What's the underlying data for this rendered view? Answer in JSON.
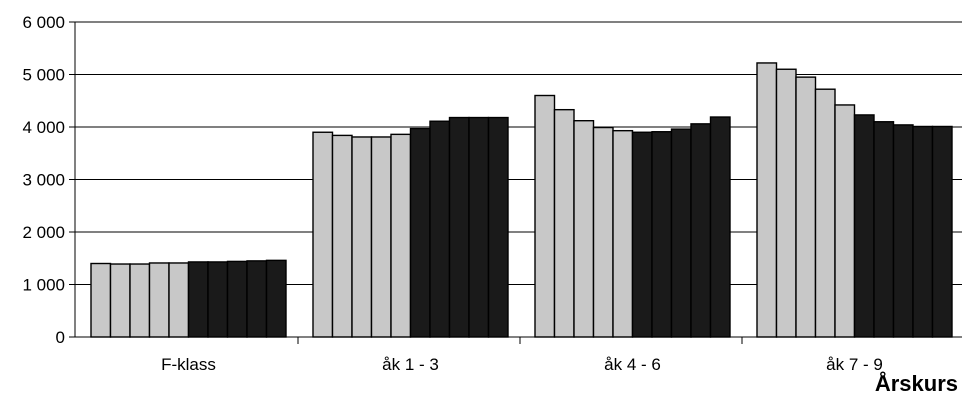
{
  "chart_data": {
    "type": "bar",
    "title": "",
    "xlabel": "Årskurs",
    "ylabel": "",
    "ylim": [
      0,
      6000
    ],
    "yticks": [
      0,
      1000,
      2000,
      3000,
      4000,
      5000,
      6000
    ],
    "ytick_labels": [
      "0",
      "1 000",
      "2 000",
      "3 000",
      "4 000",
      "5 000",
      "6 000"
    ],
    "grid": true,
    "legend": "none",
    "categories": [
      "F-klass",
      "åk 1 - 3",
      "åk 4 - 6",
      "åk 7 - 9"
    ],
    "series_colors": {
      "light": "#c8c8c8",
      "dark": "#1a1a1a",
      "outline": "#000000"
    },
    "groups": [
      {
        "category": "F-klass",
        "values": [
          1400,
          1390,
          1390,
          1410,
          1410,
          1430,
          1430,
          1440,
          1450,
          1460
        ],
        "shades": [
          "light",
          "light",
          "light",
          "light",
          "light",
          "dark",
          "dark",
          "dark",
          "dark",
          "dark"
        ]
      },
      {
        "category": "åk 1 - 3",
        "values": [
          3900,
          3840,
          3810,
          3810,
          3860,
          3970,
          4110,
          4180,
          4180,
          4180
        ],
        "shades": [
          "light",
          "light",
          "light",
          "light",
          "light",
          "dark",
          "dark",
          "dark",
          "dark",
          "dark"
        ]
      },
      {
        "category": "åk 4 - 6",
        "values": [
          4600,
          4330,
          4120,
          3990,
          3930,
          3900,
          3910,
          3960,
          4060,
          4190
        ],
        "shades": [
          "light",
          "light",
          "light",
          "light",
          "light",
          "dark",
          "dark",
          "dark",
          "dark",
          "dark"
        ]
      },
      {
        "category": "åk 7 - 9",
        "values": [
          5220,
          5100,
          4950,
          4720,
          4420,
          4230,
          4100,
          4040,
          4010,
          4010
        ],
        "shades": [
          "light",
          "light",
          "light",
          "light",
          "light",
          "dark",
          "dark",
          "dark",
          "dark",
          "dark"
        ]
      }
    ]
  }
}
